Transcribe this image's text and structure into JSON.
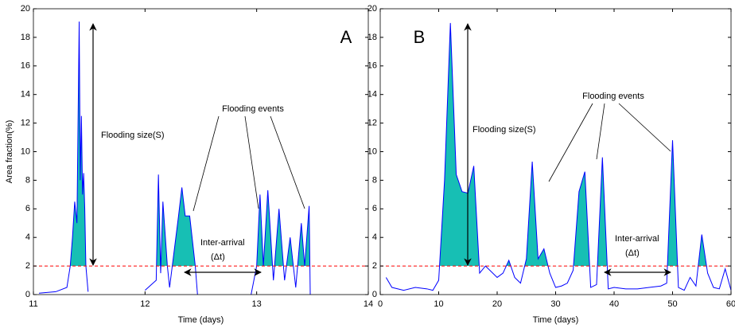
{
  "chart_data": [
    {
      "type": "line",
      "panel_label": "A",
      "xlabel": "Time (days)",
      "ylabel": "Area fraction(%)",
      "annotations": [
        "Flooding size(S)",
        "Flooding events",
        "Inter-arrival",
        "(Δt)"
      ],
      "xlim": [
        11,
        14
      ],
      "ylim": [
        0,
        20
      ],
      "xticks": [
        11,
        12,
        13,
        14
      ],
      "yticks": [
        0,
        2,
        4,
        6,
        8,
        10,
        12,
        14,
        16,
        18,
        20
      ],
      "threshold": 2,
      "threshold_color": "#ff0000",
      "fill_color": "#17bfb4",
      "series": [
        {
          "color": "#0000ff",
          "x": [
            11.05,
            11.2,
            11.3,
            11.33,
            11.35,
            11.37,
            11.39,
            11.41,
            11.42,
            11.43,
            11.44,
            11.45,
            11.46,
            11.47,
            11.49,
            11.75,
            12.0,
            12.1,
            12.12,
            12.14,
            12.16,
            12.2,
            12.22,
            12.3,
            12.33,
            12.36,
            12.4,
            12.45,
            12.47,
            12.75,
            12.95,
            13.0,
            13.03,
            13.06,
            13.1,
            13.15,
            13.2,
            13.25,
            13.3,
            13.35,
            13.4,
            13.43,
            13.47,
            13.48
          ],
          "values": [
            0.1,
            0.2,
            0.5,
            2,
            4,
            6.5,
            5,
            19.1,
            8,
            12.5,
            7,
            8.5,
            6,
            2,
            0.2,
            null,
            0.3,
            1,
            8.4,
            1.5,
            6.5,
            2,
            0.5,
            5.5,
            7.5,
            5.5,
            5.5,
            2,
            0,
            null,
            0,
            2,
            7,
            2,
            7.3,
            1,
            6,
            1,
            4,
            0.5,
            5,
            2,
            6.2,
            0
          ]
        }
      ]
    },
    {
      "type": "line",
      "panel_label": "B",
      "xlabel": "Time (days)",
      "annotations": [
        "Flooding size(S)",
        "Flooding events",
        "Inter-arrival",
        "(Δt)"
      ],
      "xlim": [
        0,
        60
      ],
      "ylim": [
        0,
        20
      ],
      "xticks": [
        0,
        10,
        20,
        30,
        40,
        50,
        60
      ],
      "yticks": [
        0,
        2,
        4,
        6,
        8,
        10,
        12,
        14,
        16,
        18,
        20
      ],
      "threshold": 2,
      "threshold_color": "#ff0000",
      "fill_color": "#17bfb4",
      "series": [
        {
          "color": "#0000ff",
          "x": [
            1,
            2,
            4,
            6,
            8,
            9,
            10,
            11,
            12,
            13,
            14,
            15,
            16,
            17,
            18,
            20,
            21,
            22,
            23,
            24,
            25,
            26,
            27,
            28,
            29,
            30,
            31,
            32,
            33,
            34,
            35,
            36,
            37,
            38,
            39,
            40,
            42,
            44,
            46,
            48,
            49,
            50,
            51,
            52,
            53,
            54,
            55,
            56,
            57,
            58,
            59,
            60
          ],
          "values": [
            1.2,
            0.5,
            0.3,
            0.5,
            0.4,
            0.3,
            1,
            8,
            19,
            8.4,
            7.2,
            7.1,
            9,
            1.5,
            2,
            1.2,
            1.5,
            2.4,
            1.2,
            0.8,
            2.5,
            9.3,
            2.5,
            3.2,
            1.5,
            0.5,
            0.6,
            0.8,
            1.7,
            7.2,
            8.6,
            0.5,
            0.7,
            9.6,
            0.4,
            0.5,
            0.4,
            0.4,
            0.5,
            0.6,
            0.8,
            10.8,
            0.5,
            0.3,
            1.2,
            0.6,
            4.2,
            1.5,
            0.5,
            0.4,
            1.8,
            0.3
          ]
        }
      ]
    }
  ]
}
